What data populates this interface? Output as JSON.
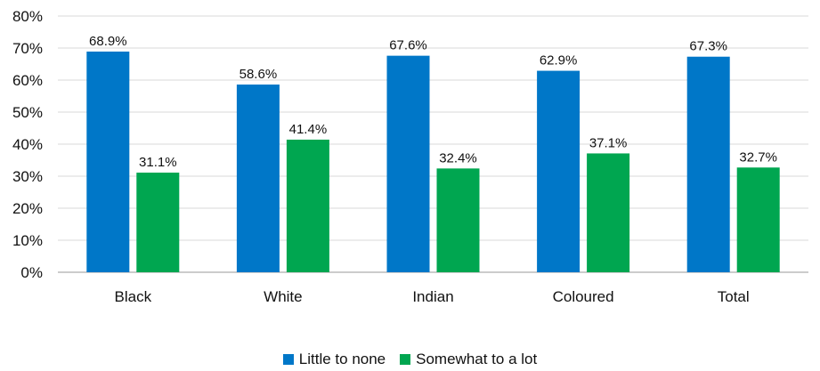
{
  "chart_data": {
    "type": "bar",
    "title": "",
    "xlabel": "",
    "ylabel": "",
    "categories": [
      "Black",
      "White",
      "Indian",
      "Coloured",
      "Total"
    ],
    "series": [
      {
        "name": "Little to none",
        "color": "#0077c8",
        "values": [
          68.9,
          58.6,
          67.6,
          62.9,
          67.3
        ],
        "labels": [
          "68.9%",
          "58.6%",
          "67.6%",
          "62.9%",
          "67.3%"
        ]
      },
      {
        "name": "Somewhat to a lot",
        "color": "#00a650",
        "values": [
          31.1,
          41.4,
          32.4,
          37.1,
          32.7
        ],
        "labels": [
          "31.1%",
          "41.4%",
          "32.4%",
          "37.1%",
          "32.7%"
        ]
      }
    ],
    "ylim": [
      0,
      80
    ],
    "yticks": [
      "0%",
      "10%",
      "20%",
      "30%",
      "40%",
      "50%",
      "60%",
      "70%",
      "80%"
    ],
    "grid": true,
    "legend_position": "bottom"
  }
}
